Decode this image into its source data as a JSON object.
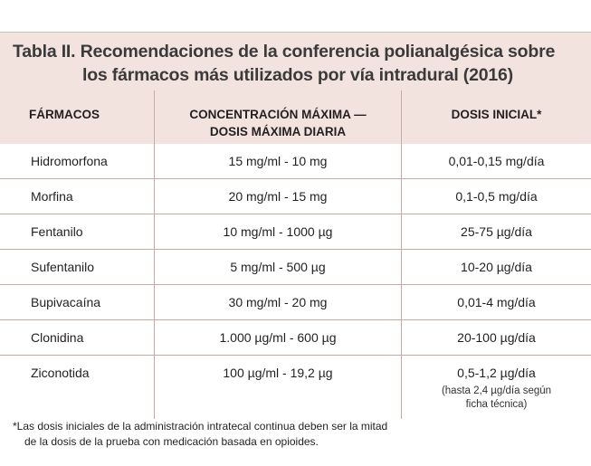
{
  "title": {
    "line1": "Tabla II. Recomendaciones de la conferencia polianalgésica sobre",
    "line2": "los fármacos más utilizados por vía intradural (2016)"
  },
  "headers": {
    "drug": "FÁRMACOS",
    "conc_line1": "CONCENTRACIÓN MÁXIMA —",
    "conc_line2": "DOSIS MÁXIMA DIARIA",
    "dose": "DOSIS INICIAL*"
  },
  "rows": [
    {
      "drug": "Hidromorfona",
      "conc": "15 mg/ml - 10 mg",
      "dose": "0,01-0,15 mg/día"
    },
    {
      "drug": "Morfina",
      "conc": "20 mg/ml - 15 mg",
      "dose": "0,1-0,5 mg/día"
    },
    {
      "drug": "Fentanilo",
      "conc": "10 mg/ml - 1000 µg",
      "dose": "25-75 µg/día"
    },
    {
      "drug": "Sufentanilo",
      "conc": "5 mg/ml - 500 µg",
      "dose": "10-20 µg/día"
    },
    {
      "drug": "Bupivacaína",
      "conc": "30 mg/ml - 20 mg",
      "dose": "0,01-4 mg/día"
    },
    {
      "drug": "Clonidina",
      "conc": "1.000 µg/ml - 600 µg",
      "dose": "20-100 µg/día"
    },
    {
      "drug": "Ziconotida",
      "conc": "100 µg/ml - 19,2 µg",
      "dose": "0,5-1,2 µg/día",
      "note_line1": "(hasta 2,4 µg/día según",
      "note_line2": "ficha técnica)"
    }
  ],
  "footnote": {
    "line1": "*Las dosis iniciales de la administración intratecal continua deben ser la mitad",
    "line2": "de la dosis de la prueba con medicación basada en opioides."
  }
}
